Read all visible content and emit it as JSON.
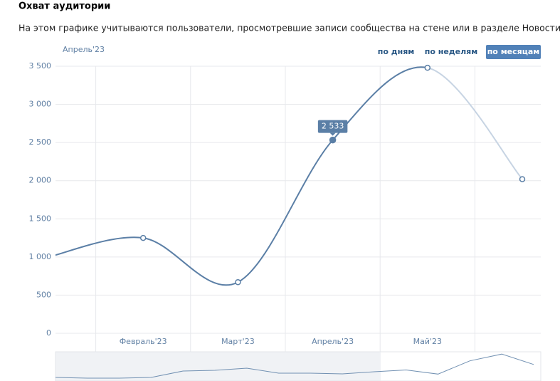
{
  "chart_data": {
    "type": "line",
    "title": "Охват аудитории",
    "subtitle": "На этом графике учитываются пользователи, просмотревшие записи сообщества на стене или в разделе Новости.",
    "period_label": "Апрель'23",
    "categories": [
      null,
      "Февраль'23",
      "Март'23",
      "Апрель'23",
      "Май'23",
      null
    ],
    "series": [
      {
        "color": "#5b7fa6",
        "incomplete_color": "#c7d4e3",
        "values": [
          1000,
          1250,
          670,
          2533,
          3480,
          2020
        ],
        "value_labels": [
          null,
          null,
          null,
          "2 533",
          null,
          null
        ]
      }
    ],
    "highlight_index": 3,
    "incomplete_from": 4,
    "ylim": [
      0,
      3500
    ],
    "yticks": [
      0,
      500,
      {
        "value": 1000,
        "label": "1 000"
      },
      {
        "value": 1500,
        "label": "1 500"
      },
      {
        "value": 2000,
        "label": "2 000"
      },
      {
        "value": 2500,
        "label": "2 500"
      },
      {
        "value": 3000,
        "label": "3 000"
      },
      {
        "value": 3500,
        "label": "3 500"
      }
    ],
    "grid": true,
    "navigator": {
      "color": "#5b7fa6",
      "values": [
        200,
        100,
        100,
        200,
        1100,
        1200,
        1500,
        800,
        800,
        700,
        1000,
        1250,
        670,
        2533,
        3480,
        2020
      ]
    }
  },
  "controls": {
    "buttons": [
      "по дням",
      "по неделям",
      "по месяцам"
    ],
    "active": 2
  }
}
